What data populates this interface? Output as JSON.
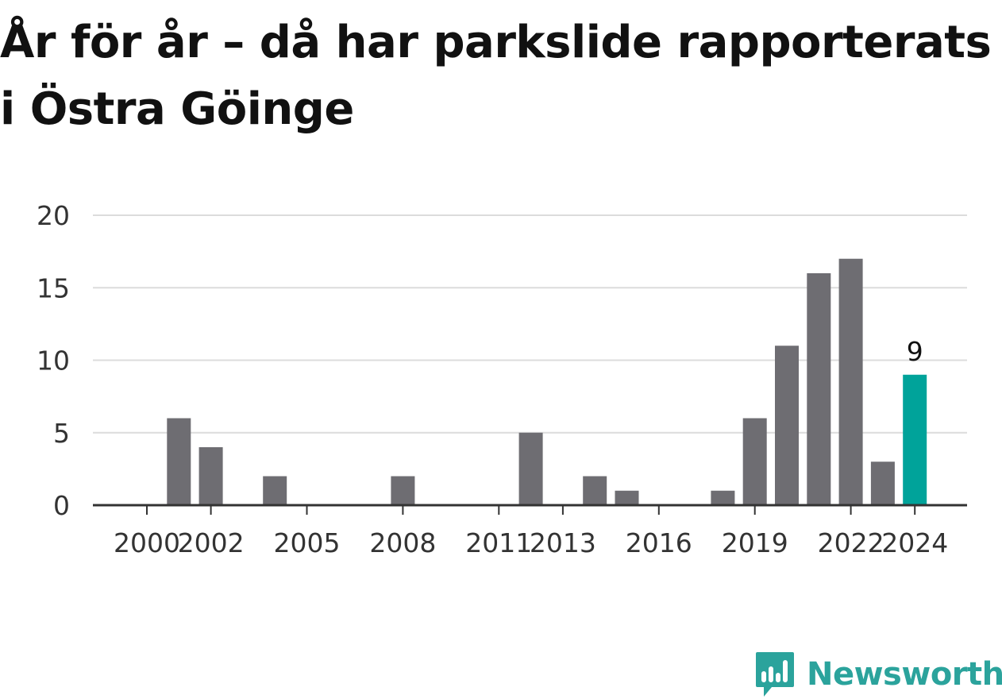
{
  "title": "År för år – då har parkslide rapporterats i Östra Göinge",
  "brand": {
    "name": "Newsworthy",
    "icon": "bar-chart-speech-bubble-icon",
    "color": "#2ba39c"
  },
  "colors": {
    "bar": "#6e6d72",
    "highlight": "#00a39a",
    "grid": "#dcdcdc",
    "axis": "#333333",
    "text": "#333333"
  },
  "chart_data": {
    "type": "bar",
    "categories": [
      "2000",
      "2001",
      "2002",
      "2003",
      "2004",
      "2005",
      "2006",
      "2007",
      "2008",
      "2009",
      "2010",
      "2011",
      "2012",
      "2013",
      "2014",
      "2015",
      "2016",
      "2017",
      "2018",
      "2019",
      "2020",
      "2021",
      "2022",
      "2023",
      "2024"
    ],
    "values": [
      0,
      6,
      4,
      0,
      2,
      0,
      0,
      0,
      2,
      0,
      0,
      0,
      5,
      0,
      2,
      1,
      0,
      0,
      1,
      6,
      11,
      16,
      17,
      3,
      9
    ],
    "x_tick_labels": [
      "2000",
      "2002",
      "2005",
      "2008",
      "2011",
      "2013",
      "2016",
      "2019",
      "2022",
      "2024"
    ],
    "y_ticks": [
      0,
      5,
      10,
      15,
      20
    ],
    "ylim": [
      0,
      20
    ],
    "highlight_category": "2024",
    "data_labels": [
      {
        "category": "2024",
        "text": "9"
      }
    ],
    "grid": true,
    "xlabel": "",
    "ylabel": ""
  }
}
